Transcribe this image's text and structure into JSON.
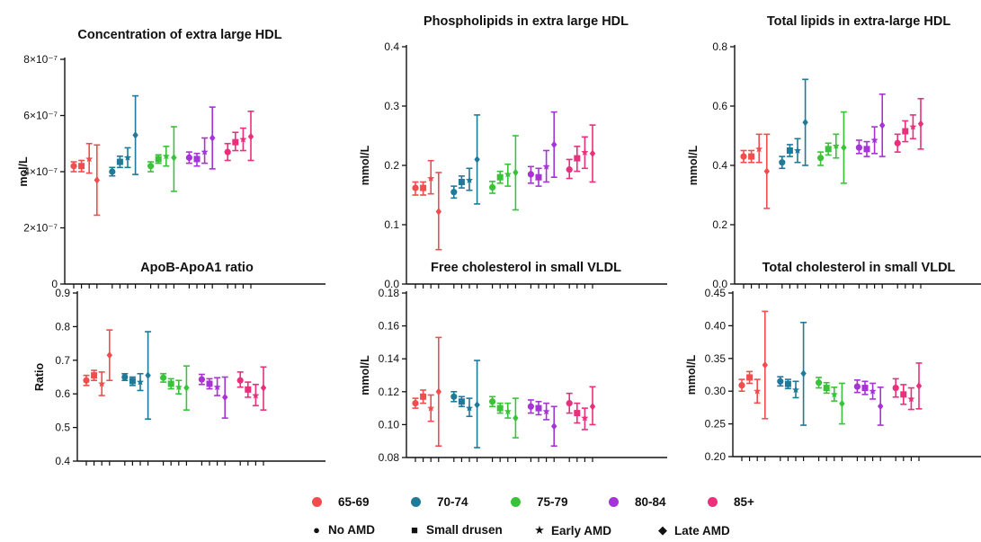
{
  "groups": [
    {
      "label": "65-69",
      "color": "#f04e4e"
    },
    {
      "label": "70-74",
      "color": "#1f7a99"
    },
    {
      "label": "75-79",
      "color": "#3ac23a"
    },
    {
      "label": "80-84",
      "color": "#a633d6"
    },
    {
      "label": "85+",
      "color": "#e8307d"
    }
  ],
  "shapes": [
    {
      "label": "No AMD",
      "icon": "circle-icon",
      "glyph": "●"
    },
    {
      "label": "Small drusen",
      "icon": "square-icon",
      "glyph": "■"
    },
    {
      "label": "Early AMD",
      "icon": "star-icon",
      "glyph": "★"
    },
    {
      "label": "Late AMD",
      "icon": "diamond-icon",
      "glyph": "◆"
    }
  ],
  "chart_data": [
    {
      "type": "scatter",
      "title": "Concentration of extra large HDL",
      "ylabel": "mol/L",
      "ylim": [
        0,
        8e-07
      ],
      "yticks": [
        0,
        2e-07,
        4e-07,
        6e-07,
        8e-07
      ],
      "ytick_labels": [
        "0",
        "2×10⁻⁷",
        "4×10⁻⁷",
        "6×10⁻⁷",
        "8×10⁻⁷"
      ],
      "series": [
        {
          "group": "65-69",
          "values": [
            [
              4.2e-07,
              4e-07,
              4.35e-07
            ],
            [
              4.2e-07,
              4e-07,
              4.4e-07
            ],
            [
              4.45e-07,
              3.95e-07,
              5e-07
            ],
            [
              3.7e-07,
              2.45e-07,
              4.95e-07
            ]
          ]
        },
        {
          "group": "70-74",
          "values": [
            [
              4e-07,
              3.85e-07,
              4.15e-07
            ],
            [
              4.35e-07,
              4.15e-07,
              4.55e-07
            ],
            [
              4.5e-07,
              4.15e-07,
              4.85e-07
            ],
            [
              5.3e-07,
              3.9e-07,
              6.7e-07
            ]
          ]
        },
        {
          "group": "75-79",
          "values": [
            [
              4.2e-07,
              4e-07,
              4.35e-07
            ],
            [
              4.45e-07,
              4.3e-07,
              4.6e-07
            ],
            [
              4.55e-07,
              4.2e-07,
              4.9e-07
            ],
            [
              4.5e-07,
              3.3e-07,
              5.6e-07
            ]
          ]
        },
        {
          "group": "80-84",
          "values": [
            [
              4.5e-07,
              4.3e-07,
              4.7e-07
            ],
            [
              4.45e-07,
              4.2e-07,
              4.65e-07
            ],
            [
              4.7e-07,
              4.3e-07,
              5.2e-07
            ],
            [
              5.2e-07,
              4.1e-07,
              6.3e-07
            ]
          ]
        },
        {
          "group": "85+",
          "values": [
            [
              4.7e-07,
              4.4e-07,
              5e-07
            ],
            [
              5.05e-07,
              4.75e-07,
              5.4e-07
            ],
            [
              5.15e-07,
              4.75e-07,
              5.55e-07
            ],
            [
              5.25e-07,
              4.4e-07,
              6.15e-07
            ]
          ]
        }
      ]
    },
    {
      "type": "scatter",
      "title": "Phospholipids in extra large HDL",
      "ylabel": "mmol/L",
      "ylim": [
        0,
        0.4
      ],
      "yticks": [
        0,
        0.1,
        0.2,
        0.3,
        0.4
      ],
      "ytick_labels": [
        "0.0",
        "0.1",
        "0.2",
        "0.3",
        "0.4"
      ],
      "series": [
        {
          "group": "65-69",
          "values": [
            [
              0.162,
              0.15,
              0.172
            ],
            [
              0.162,
              0.15,
              0.172
            ],
            [
              0.178,
              0.152,
              0.208
            ],
            [
              0.122,
              0.058,
              0.188
            ]
          ]
        },
        {
          "group": "70-74",
          "values": [
            [
              0.155,
              0.145,
              0.165
            ],
            [
              0.172,
              0.162,
              0.182
            ],
            [
              0.175,
              0.158,
              0.195
            ],
            [
              0.21,
              0.135,
              0.285
            ]
          ]
        },
        {
          "group": "75-79",
          "values": [
            [
              0.163,
              0.153,
              0.173
            ],
            [
              0.18,
              0.17,
              0.19
            ],
            [
              0.185,
              0.165,
              0.202
            ],
            [
              0.188,
              0.125,
              0.25
            ]
          ]
        },
        {
          "group": "80-84",
          "values": [
            [
              0.185,
              0.17,
              0.198
            ],
            [
              0.18,
              0.165,
              0.195
            ],
            [
              0.198,
              0.172,
              0.225
            ],
            [
              0.235,
              0.18,
              0.29
            ]
          ]
        },
        {
          "group": "85+",
          "values": [
            [
              0.193,
              0.178,
              0.21
            ],
            [
              0.212,
              0.19,
              0.232
            ],
            [
              0.222,
              0.195,
              0.248
            ],
            [
              0.22,
              0.172,
              0.268
            ]
          ]
        }
      ]
    },
    {
      "type": "scatter",
      "title": "Total lipids in extra-large HDL",
      "ylabel": "mmol/L",
      "ylim": [
        0,
        0.8
      ],
      "yticks": [
        0,
        0.2,
        0.4,
        0.6,
        0.8
      ],
      "ytick_labels": [
        "0.0",
        "0.2",
        "0.4",
        "0.6",
        "0.8"
      ],
      "series": [
        {
          "group": "65-69",
          "values": [
            [
              0.43,
              0.41,
              0.45
            ],
            [
              0.43,
              0.41,
              0.45
            ],
            [
              0.455,
              0.41,
              0.505
            ],
            [
              0.38,
              0.255,
              0.505
            ]
          ]
        },
        {
          "group": "70-74",
          "values": [
            [
              0.41,
              0.39,
              0.43
            ],
            [
              0.45,
              0.43,
              0.47
            ],
            [
              0.45,
              0.41,
              0.49
            ],
            [
              0.545,
              0.4,
              0.69
            ]
          ]
        },
        {
          "group": "75-79",
          "values": [
            [
              0.425,
              0.4,
              0.445
            ],
            [
              0.455,
              0.435,
              0.475
            ],
            [
              0.465,
              0.425,
              0.505
            ],
            [
              0.46,
              0.34,
              0.58
            ]
          ]
        },
        {
          "group": "80-84",
          "values": [
            [
              0.46,
              0.44,
              0.485
            ],
            [
              0.455,
              0.43,
              0.48
            ],
            [
              0.485,
              0.44,
              0.53
            ],
            [
              0.535,
              0.43,
              0.64
            ]
          ]
        },
        {
          "group": "85+",
          "values": [
            [
              0.475,
              0.445,
              0.505
            ],
            [
              0.515,
              0.48,
              0.55
            ],
            [
              0.53,
              0.49,
              0.57
            ],
            [
              0.54,
              0.455,
              0.625
            ]
          ]
        }
      ]
    },
    {
      "type": "scatter",
      "title": "ApoB-ApoA1 ratio",
      "ylabel": "Ratio",
      "ylim": [
        0.4,
        0.9
      ],
      "yticks": [
        0.4,
        0.5,
        0.6,
        0.7,
        0.8,
        0.9
      ],
      "ytick_labels": [
        "0.4",
        "0.5",
        "0.6",
        "0.7",
        "0.8",
        "0.9"
      ],
      "series": [
        {
          "group": "65-69",
          "values": [
            [
              0.64,
              0.625,
              0.655
            ],
            [
              0.655,
              0.64,
              0.67
            ],
            [
              0.63,
              0.595,
              0.665
            ],
            [
              0.715,
              0.64,
              0.79
            ]
          ]
        },
        {
          "group": "70-74",
          "values": [
            [
              0.65,
              0.64,
              0.66
            ],
            [
              0.638,
              0.625,
              0.65
            ],
            [
              0.635,
              0.61,
              0.66
            ],
            [
              0.655,
              0.525,
              0.785
            ]
          ]
        },
        {
          "group": "75-79",
          "values": [
            [
              0.648,
              0.635,
              0.66
            ],
            [
              0.63,
              0.615,
              0.645
            ],
            [
              0.62,
              0.6,
              0.64
            ],
            [
              0.618,
              0.552,
              0.683
            ]
          ]
        },
        {
          "group": "80-84",
          "values": [
            [
              0.643,
              0.628,
              0.658
            ],
            [
              0.63,
              0.615,
              0.645
            ],
            [
              0.62,
              0.595,
              0.648
            ],
            [
              0.59,
              0.528,
              0.65
            ]
          ]
        },
        {
          "group": "85+",
          "values": [
            [
              0.64,
              0.62,
              0.665
            ],
            [
              0.613,
              0.59,
              0.635
            ],
            [
              0.595,
              0.565,
              0.628
            ],
            [
              0.618,
              0.552,
              0.68
            ]
          ]
        }
      ]
    },
    {
      "type": "scatter",
      "title": "Free cholesterol in small VLDL",
      "ylabel": "mmol/L",
      "ylim": [
        0.08,
        0.18
      ],
      "yticks": [
        0.08,
        0.1,
        0.12,
        0.14,
        0.16,
        0.18
      ],
      "ytick_labels": [
        "0.08",
        "0.10",
        "0.12",
        "0.14",
        "0.16",
        "0.18"
      ],
      "series": [
        {
          "group": "65-69",
          "values": [
            [
              0.113,
              0.11,
              0.116
            ],
            [
              0.117,
              0.113,
              0.121
            ],
            [
              0.11,
              0.102,
              0.118
            ],
            [
              0.12,
              0.087,
              0.153
            ]
          ]
        },
        {
          "group": "70-74",
          "values": [
            [
              0.117,
              0.114,
              0.12
            ],
            [
              0.114,
              0.111,
              0.117
            ],
            [
              0.11,
              0.105,
              0.116
            ],
            [
              0.112,
              0.086,
              0.139
            ]
          ]
        },
        {
          "group": "75-79",
          "values": [
            [
              0.114,
              0.111,
              0.117
            ],
            [
              0.11,
              0.107,
              0.113
            ],
            [
              0.108,
              0.104,
              0.113
            ],
            [
              0.104,
              0.092,
              0.116
            ]
          ]
        },
        {
          "group": "80-84",
          "values": [
            [
              0.111,
              0.107,
              0.115
            ],
            [
              0.11,
              0.106,
              0.114
            ],
            [
              0.108,
              0.103,
              0.113
            ],
            [
              0.099,
              0.087,
              0.111
            ]
          ]
        },
        {
          "group": "85+",
          "values": [
            [
              0.113,
              0.107,
              0.119
            ],
            [
              0.107,
              0.101,
              0.113
            ],
            [
              0.104,
              0.097,
              0.11
            ],
            [
              0.111,
              0.1,
              0.123
            ]
          ]
        }
      ]
    },
    {
      "type": "scatter",
      "title": "Total cholesterol in small VLDL",
      "ylabel": "mmol/L",
      "ylim": [
        0.2,
        0.45
      ],
      "yticks": [
        0.2,
        0.25,
        0.3,
        0.35,
        0.4,
        0.45
      ],
      "ytick_labels": [
        "0.20",
        "0.25",
        "0.30",
        "0.35",
        "0.40",
        "0.45"
      ],
      "series": [
        {
          "group": "65-69",
          "values": [
            [
              0.309,
              0.3,
              0.318
            ],
            [
              0.321,
              0.312,
              0.33
            ],
            [
              0.3,
              0.282,
              0.318
            ],
            [
              0.34,
              0.258,
              0.422
            ]
          ]
        },
        {
          "group": "70-74",
          "values": [
            [
              0.315,
              0.308,
              0.322
            ],
            [
              0.311,
              0.304,
              0.318
            ],
            [
              0.302,
              0.29,
              0.315
            ],
            [
              0.327,
              0.248,
              0.405
            ]
          ]
        },
        {
          "group": "75-79",
          "values": [
            [
              0.313,
              0.305,
              0.321
            ],
            [
              0.305,
              0.297,
              0.313
            ],
            [
              0.295,
              0.285,
              0.306
            ],
            [
              0.281,
              0.25,
              0.312
            ]
          ]
        },
        {
          "group": "80-84",
          "values": [
            [
              0.307,
              0.298,
              0.317
            ],
            [
              0.305,
              0.295,
              0.315
            ],
            [
              0.3,
              0.288,
              0.312
            ],
            [
              0.277,
              0.248,
              0.306
            ]
          ]
        },
        {
          "group": "85+",
          "values": [
            [
              0.305,
              0.291,
              0.319
            ],
            [
              0.295,
              0.28,
              0.31
            ],
            [
              0.288,
              0.272,
              0.305
            ],
            [
              0.308,
              0.273,
              0.343
            ]
          ]
        }
      ]
    }
  ]
}
